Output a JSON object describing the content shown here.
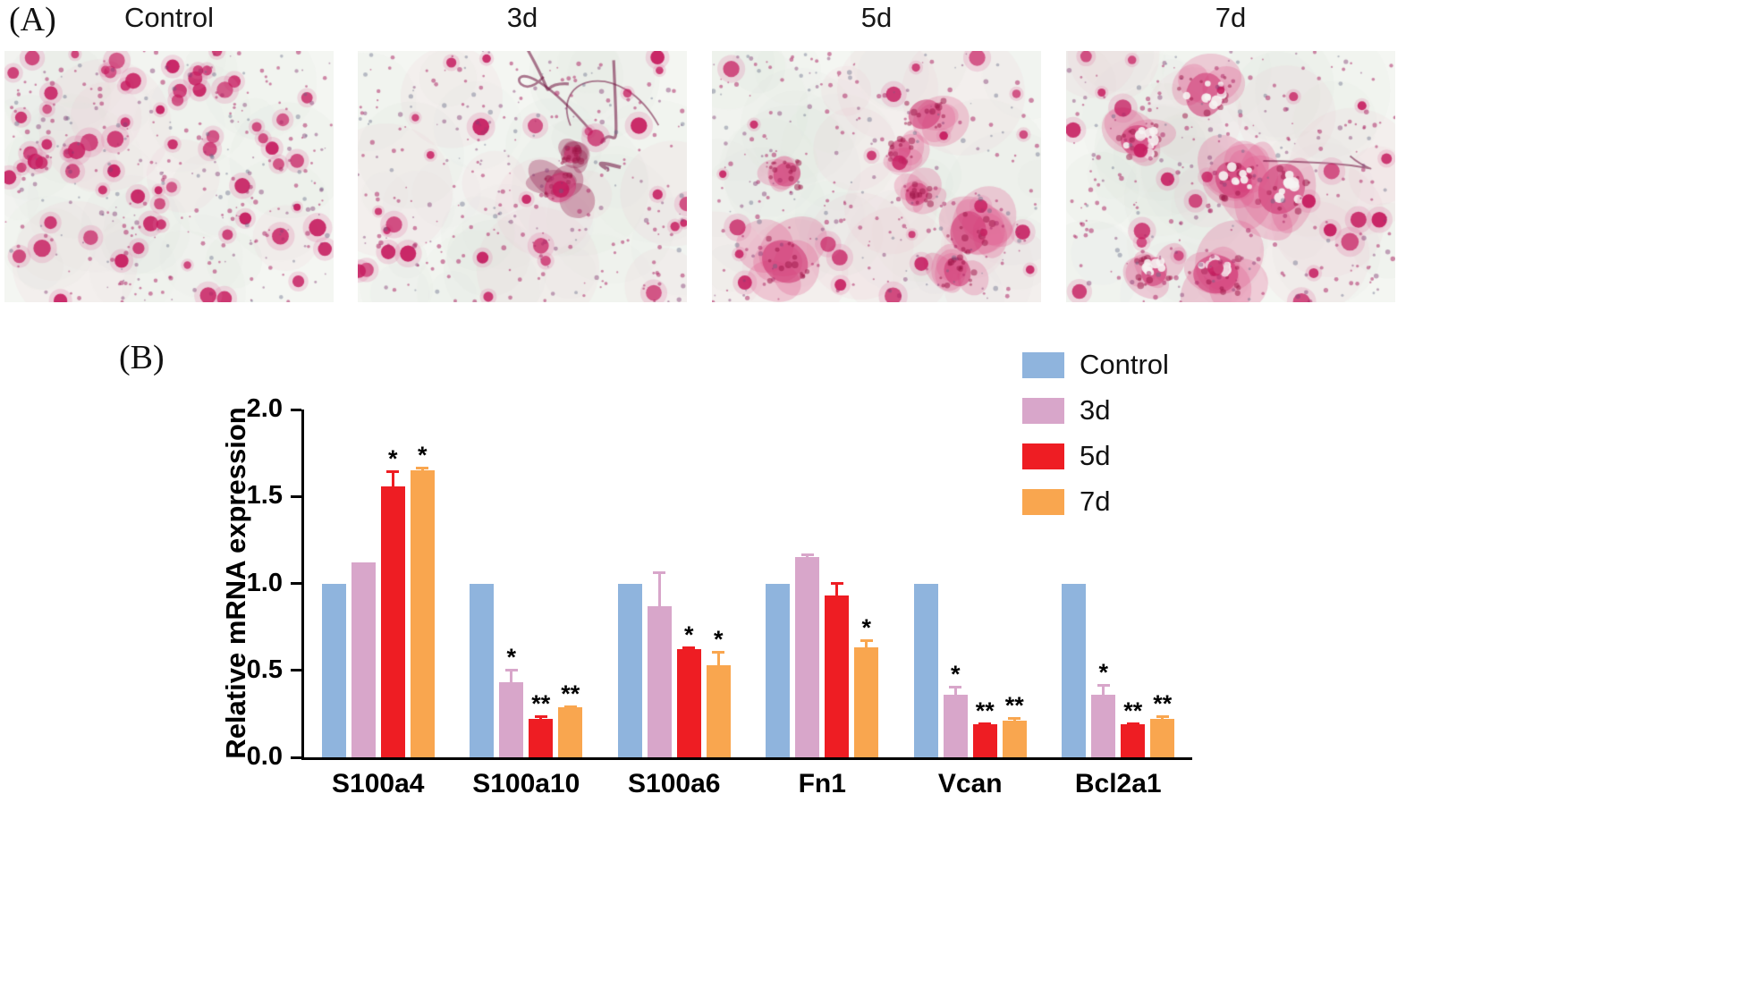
{
  "panel_a": {
    "label": "(A)",
    "images": [
      {
        "label": "Control"
      },
      {
        "label": "3d"
      },
      {
        "label": "5d"
      },
      {
        "label": "7d"
      }
    ]
  },
  "panel_b": {
    "label": "(B)"
  },
  "chart_data": {
    "type": "bar",
    "title": "",
    "xlabel": "",
    "ylabel": "Relative mRNA expression",
    "ylim": [
      0,
      2.0
    ],
    "yticks": [
      0,
      0.5,
      1.0,
      1.5,
      2.0
    ],
    "grid": false,
    "legend_position": "top-right",
    "categories": [
      "S100a4",
      "S100a10",
      "S100a6",
      "Fn1",
      "Vcan",
      "Bcl2a1"
    ],
    "series": [
      {
        "name": "Control",
        "color": "#8fb4dd",
        "values": [
          1.0,
          1.0,
          1.0,
          1.0,
          1.0,
          1.0
        ],
        "errors": [
          0,
          0,
          0,
          0,
          0,
          0
        ],
        "sig": [
          "",
          "",
          "",
          "",
          "",
          ""
        ]
      },
      {
        "name": "3d",
        "color": "#d8a6ca",
        "values": [
          1.12,
          0.43,
          0.87,
          1.15,
          0.36,
          0.36
        ],
        "errors": [
          0,
          0.08,
          0.2,
          0.02,
          0.05,
          0.06
        ],
        "sig": [
          "",
          "*",
          "",
          "",
          "*",
          "*"
        ]
      },
      {
        "name": "5d",
        "color": "#ee1d23",
        "values": [
          1.56,
          0.22,
          0.62,
          0.93,
          0.19,
          0.19
        ],
        "errors": [
          0.09,
          0.02,
          0.02,
          0.08,
          0.01,
          0.01
        ],
        "sig": [
          "*",
          "**",
          "*",
          "",
          "**",
          "**"
        ]
      },
      {
        "name": "7d",
        "color": "#f9a64f",
        "values": [
          1.65,
          0.29,
          0.53,
          0.63,
          0.21,
          0.22
        ],
        "errors": [
          0.02,
          0.01,
          0.08,
          0.05,
          0.02,
          0.02
        ],
        "sig": [
          "*",
          "**",
          "*",
          "*",
          "**",
          "**"
        ]
      }
    ]
  }
}
